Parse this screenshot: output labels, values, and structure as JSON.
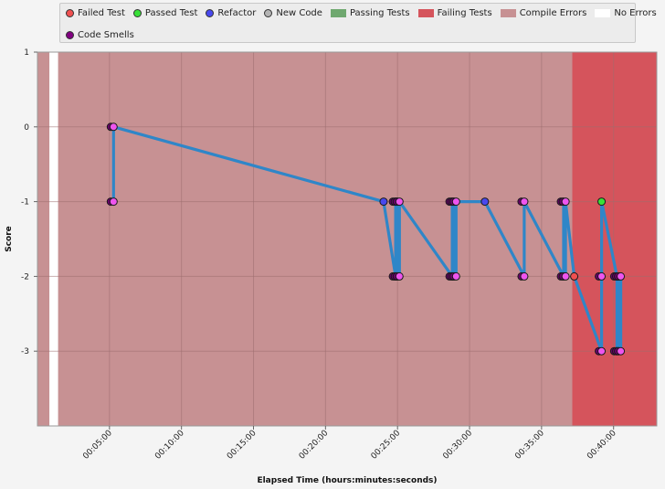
{
  "legend": {
    "row1": [
      {
        "label": "Failed Test",
        "kind": "dot",
        "color": "#f05050"
      },
      {
        "label": "Passed Test",
        "kind": "dot",
        "color": "#38e038"
      },
      {
        "label": "Refactor",
        "kind": "dot",
        "color": "#4848ee"
      },
      {
        "label": "New Code",
        "kind": "dot",
        "color": "#b4b4b4"
      },
      {
        "label": "Passing Tests",
        "kind": "square",
        "color": "#6fa86f"
      },
      {
        "label": "Failing Tests",
        "kind": "square",
        "color": "#d5545c"
      },
      {
        "label": "Compile Errors",
        "kind": "square",
        "color": "#c79193"
      },
      {
        "label": "No Errors",
        "kind": "square",
        "color": "#ffffff"
      }
    ],
    "row2": [
      {
        "label": "Code Smells",
        "kind": "dot",
        "color": "#800080"
      }
    ]
  },
  "chart_data": {
    "type": "line",
    "xlabel": "Elapsed Time (hours:minutes:seconds)",
    "ylabel": "Score",
    "xlim": [
      0,
      2580
    ],
    "ylim": [
      -4,
      1
    ],
    "x_ticks": [
      {
        "sec": 300,
        "label": "00:05:00"
      },
      {
        "sec": 600,
        "label": "00:10:00"
      },
      {
        "sec": 900,
        "label": "00:15:00"
      },
      {
        "sec": 1200,
        "label": "00:20:00"
      },
      {
        "sec": 1500,
        "label": "00:25:00"
      },
      {
        "sec": 1800,
        "label": "00:30:00"
      },
      {
        "sec": 2100,
        "label": "00:35:00"
      },
      {
        "sec": 2400,
        "label": "00:40:00"
      }
    ],
    "y_ticks": [
      1,
      0,
      -1,
      -2,
      -3
    ],
    "grid": true,
    "regions": [
      {
        "type": "Compile Errors",
        "start": -170,
        "end": 50,
        "color": "#c79193"
      },
      {
        "type": "No Errors",
        "start": 50,
        "end": 86,
        "color": "#ffffff"
      },
      {
        "type": "Compile Errors",
        "start": 86,
        "end": 2228,
        "color": "#c79193"
      },
      {
        "type": "Failing Tests",
        "start": 2228,
        "end": 2580,
        "color": "#d5545c"
      }
    ],
    "series": {
      "line_color": "#2f86c8",
      "points": [
        {
          "x": 317,
          "y": -1,
          "type": "Code Smells"
        },
        {
          "x": 317,
          "y": 0,
          "type": "Code Smells"
        },
        {
          "x": 1442,
          "y": -1,
          "type": "Refactor"
        },
        {
          "x": 1492,
          "y": -2,
          "type": "Code Smells"
        },
        {
          "x": 1492,
          "y": -1,
          "type": "Code Smells"
        },
        {
          "x": 1500,
          "y": -2,
          "type": "Code Smells"
        },
        {
          "x": 1500,
          "y": -1,
          "type": "Code Smells"
        },
        {
          "x": 1508,
          "y": -2,
          "type": "Code Smells"
        },
        {
          "x": 1508,
          "y": -1,
          "type": "Code Smells"
        },
        {
          "x": 1728,
          "y": -2,
          "type": "Code Smells"
        },
        {
          "x": 1728,
          "y": -1,
          "type": "Code Smells"
        },
        {
          "x": 1736,
          "y": -2,
          "type": "Code Smells"
        },
        {
          "x": 1736,
          "y": -1,
          "type": "Code Smells"
        },
        {
          "x": 1744,
          "y": -2,
          "type": "Code Smells"
        },
        {
          "x": 1744,
          "y": -1,
          "type": "Code Smells"
        },
        {
          "x": 1864,
          "y": -1,
          "type": "Refactor"
        },
        {
          "x": 2028,
          "y": -2,
          "type": "Code Smells"
        },
        {
          "x": 2028,
          "y": -1,
          "type": "Code Smells"
        },
        {
          "x": 2192,
          "y": -2,
          "type": "Code Smells"
        },
        {
          "x": 2192,
          "y": -1,
          "type": "Code Smells"
        },
        {
          "x": 2200,
          "y": -2,
          "type": "Code Smells"
        },
        {
          "x": 2200,
          "y": -1,
          "type": "Code Smells"
        },
        {
          "x": 2236,
          "y": -2,
          "type": "Failed Test"
        },
        {
          "x": 2350,
          "y": -3,
          "type": "Code Smells"
        },
        {
          "x": 2350,
          "y": -2,
          "type": "Code Smells"
        },
        {
          "x": 2350,
          "y": -1,
          "type": "Passed Test"
        },
        {
          "x": 2414,
          "y": -2,
          "type": "Code Smells"
        },
        {
          "x": 2414,
          "y": -3,
          "type": "Code Smells"
        },
        {
          "x": 2422,
          "y": -2,
          "type": "Code Smells"
        },
        {
          "x": 2422,
          "y": -3,
          "type": "Code Smells"
        },
        {
          "x": 2430,
          "y": -2,
          "type": "Code Smells"
        },
        {
          "x": 2430,
          "y": -3,
          "type": "Code Smells"
        }
      ]
    }
  }
}
